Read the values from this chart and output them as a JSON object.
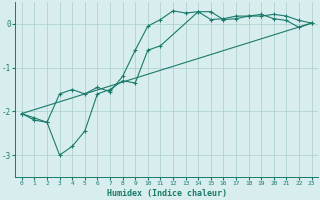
{
  "xlabel": "Humidex (Indice chaleur)",
  "background_color": "#d8eeee",
  "grid_color": "#aacccc",
  "line_color": "#1a7a6a",
  "xlim": [
    -0.5,
    23.5
  ],
  "ylim": [
    -3.5,
    0.5
  ],
  "yticks": [
    0,
    -1,
    -2,
    -3
  ],
  "xticks": [
    0,
    1,
    2,
    3,
    4,
    5,
    6,
    7,
    8,
    9,
    10,
    11,
    12,
    13,
    14,
    15,
    16,
    17,
    18,
    19,
    20,
    21,
    22,
    23
  ],
  "line1_x": [
    0,
    1,
    2,
    3,
    4,
    5,
    6,
    7,
    8,
    9,
    10,
    11,
    12,
    13,
    14,
    15,
    16,
    17,
    18,
    19,
    20,
    21,
    22,
    23
  ],
  "line1_y": [
    -2.05,
    -2.15,
    -2.25,
    -1.6,
    -1.5,
    -1.6,
    -1.45,
    -1.55,
    -1.2,
    -0.6,
    -0.05,
    0.1,
    0.3,
    0.25,
    0.28,
    0.1,
    0.12,
    0.18,
    0.18,
    0.22,
    0.12,
    0.08,
    -0.08,
    0.02
  ],
  "line2_x": [
    0,
    1,
    2,
    3,
    4,
    5,
    6,
    7,
    8,
    9,
    10,
    11,
    14,
    15,
    16,
    17,
    18,
    19,
    20,
    21,
    22,
    23
  ],
  "line2_y": [
    -2.05,
    -2.2,
    -2.25,
    -3.0,
    -2.8,
    -2.45,
    -1.6,
    -1.5,
    -1.3,
    -1.35,
    -0.6,
    -0.5,
    0.28,
    0.28,
    0.1,
    0.12,
    0.18,
    0.18,
    0.22,
    0.18,
    0.08,
    0.02
  ],
  "line3_x": [
    0,
    23
  ],
  "line3_y": [
    -2.05,
    0.02
  ]
}
